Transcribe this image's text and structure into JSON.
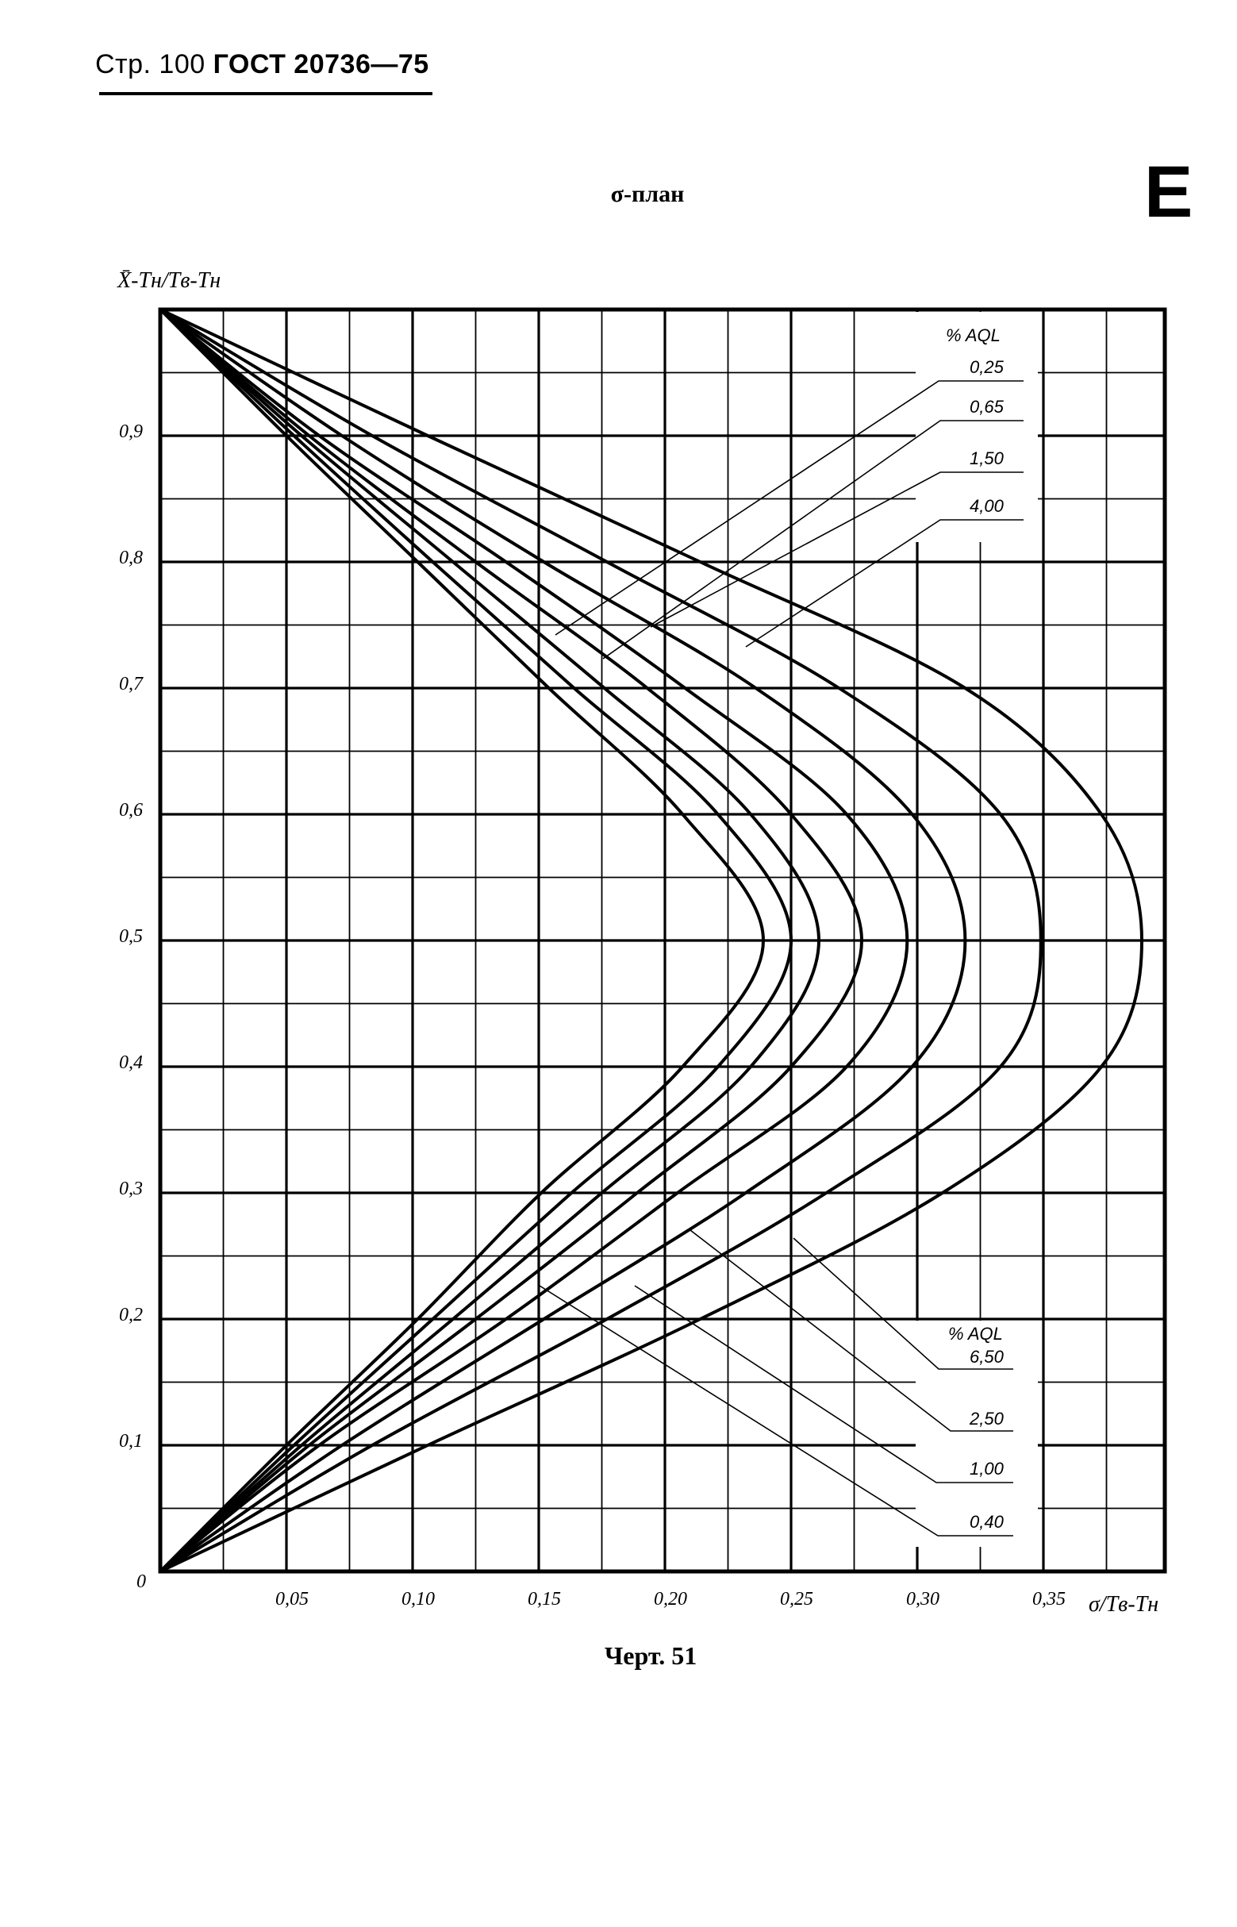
{
  "header": {
    "page_prefix": "Стр. 100",
    "standard": "ГОСТ 20736—75"
  },
  "appendix_letter": "E",
  "title": "σ-план",
  "caption": "Черт. 51",
  "chart_data": {
    "type": "line",
    "title": "σ-план",
    "xlabel": "σ/Tв-Tн",
    "ylabel": "X̄-Tн/Tв-Tн",
    "xlim": [
      0,
      0.397
    ],
    "ylim": [
      0,
      1.0
    ],
    "grid": true,
    "x_ticks": [
      "0,05",
      "0,10",
      "0,15",
      "0,20",
      "0,25",
      "0,30",
      "0,35"
    ],
    "x_tick_values": [
      0.05,
      0.1,
      0.15,
      0.2,
      0.25,
      0.3,
      0.35
    ],
    "y_ticks": [
      "0",
      "0,1",
      "0,2",
      "0,3",
      "0,4",
      "0,5",
      "0,6",
      "0,7",
      "0,8",
      "0,9"
    ],
    "y_tick_values": [
      0,
      0.1,
      0.2,
      0.3,
      0.4,
      0.5,
      0.6,
      0.7,
      0.8,
      0.9
    ],
    "legend_title": "% AQL",
    "legend_top": [
      "0,25",
      "0,65",
      "1,50",
      "4,00"
    ],
    "legend_bottom": [
      "6,50",
      "2,50",
      "1,00",
      "0,40"
    ],
    "y": [
      0,
      0.1,
      0.2,
      0.3,
      0.4,
      0.5,
      0.6,
      0.7,
      0.8,
      0.9,
      1.0
    ],
    "series": [
      {
        "name": "6,50",
        "values": [
          0,
          0.05,
          0.102,
          0.151,
          0.207,
          0.239,
          0.207,
          0.154,
          0.102,
          0.05,
          0
        ]
      },
      {
        "name": "4,00",
        "values": [
          0,
          0.053,
          0.108,
          0.163,
          0.221,
          0.25,
          0.221,
          0.164,
          0.108,
          0.053,
          0
        ]
      },
      {
        "name": "2,50",
        "values": [
          0,
          0.056,
          0.116,
          0.175,
          0.234,
          0.261,
          0.234,
          0.176,
          0.116,
          0.056,
          0
        ]
      },
      {
        "name": "1,50",
        "values": [
          0,
          0.059,
          0.125,
          0.189,
          0.25,
          0.278,
          0.25,
          0.193,
          0.125,
          0.059,
          0
        ]
      },
      {
        "name": "1,00",
        "values": [
          0,
          0.063,
          0.137,
          0.205,
          0.272,
          0.296,
          0.272,
          0.208,
          0.137,
          0.063,
          0
        ]
      },
      {
        "name": "0,65",
        "values": [
          0,
          0.072,
          0.152,
          0.232,
          0.298,
          0.319,
          0.298,
          0.236,
          0.152,
          0.072,
          0
        ]
      },
      {
        "name": "0,40",
        "values": [
          0,
          0.084,
          0.177,
          0.264,
          0.333,
          0.349,
          0.333,
          0.269,
          0.177,
          0.084,
          0
        ]
      },
      {
        "name": "0,25",
        "values": [
          0,
          0.106,
          0.214,
          0.31,
          0.373,
          0.389,
          0.373,
          0.319,
          0.214,
          0.106,
          0
        ]
      }
    ]
  }
}
